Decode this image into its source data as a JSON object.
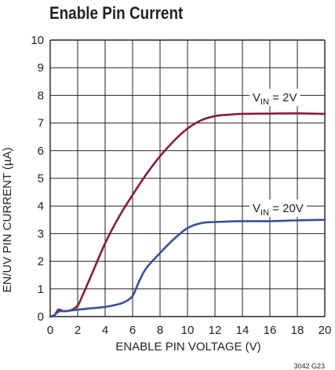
{
  "chart_data": {
    "type": "line",
    "title": "Enable Pin Current",
    "xlabel": "ENABLE PIN VOLTAGE (V)",
    "ylabel": "EN/UV PIN CURRENT (µA)",
    "xlim": [
      0,
      20
    ],
    "ylim": [
      0,
      10
    ],
    "xticks": [
      "0",
      "2",
      "4",
      "6",
      "8",
      "10",
      "12",
      "14",
      "16",
      "18",
      "20"
    ],
    "yticks": [
      "0",
      "1",
      "2",
      "3",
      "4",
      "5",
      "6",
      "7",
      "8",
      "9",
      "10"
    ],
    "grid": true,
    "series": [
      {
        "name_main": "V",
        "name_sub": "IN",
        "name_rest": " = 2V",
        "color": "#8b1a3a",
        "points": [
          [
            0,
            0
          ],
          [
            0.3,
            0.05
          ],
          [
            0.6,
            0.25
          ],
          [
            0.9,
            0.2
          ],
          [
            1.2,
            0.2
          ],
          [
            1.6,
            0.25
          ],
          [
            2.0,
            0.4
          ],
          [
            2.3,
            0.7
          ],
          [
            3,
            1.5
          ],
          [
            4,
            2.65
          ],
          [
            5,
            3.6
          ],
          [
            6,
            4.4
          ],
          [
            7,
            5.15
          ],
          [
            8,
            5.8
          ],
          [
            9,
            6.35
          ],
          [
            10,
            6.8
          ],
          [
            11,
            7.1
          ],
          [
            12,
            7.25
          ],
          [
            13,
            7.3
          ],
          [
            14,
            7.33
          ],
          [
            16,
            7.34
          ],
          [
            18,
            7.35
          ],
          [
            20,
            7.33
          ]
        ]
      },
      {
        "name_main": "V",
        "name_sub": "IN",
        "name_rest": " = 20V",
        "color": "#3a4f9a",
        "points": [
          [
            0,
            0
          ],
          [
            0.3,
            0.05
          ],
          [
            0.6,
            0.18
          ],
          [
            0.9,
            0.2
          ],
          [
            1.2,
            0.2
          ],
          [
            2,
            0.25
          ],
          [
            3,
            0.3
          ],
          [
            4,
            0.35
          ],
          [
            5,
            0.45
          ],
          [
            5.5,
            0.55
          ],
          [
            6,
            0.75
          ],
          [
            6.5,
            1.3
          ],
          [
            7,
            1.75
          ],
          [
            8,
            2.3
          ],
          [
            9,
            2.8
          ],
          [
            10,
            3.2
          ],
          [
            11,
            3.38
          ],
          [
            12,
            3.42
          ],
          [
            14,
            3.45
          ],
          [
            16,
            3.45
          ],
          [
            18,
            3.48
          ],
          [
            20,
            3.5
          ]
        ]
      }
    ],
    "note": "3042 G23"
  }
}
